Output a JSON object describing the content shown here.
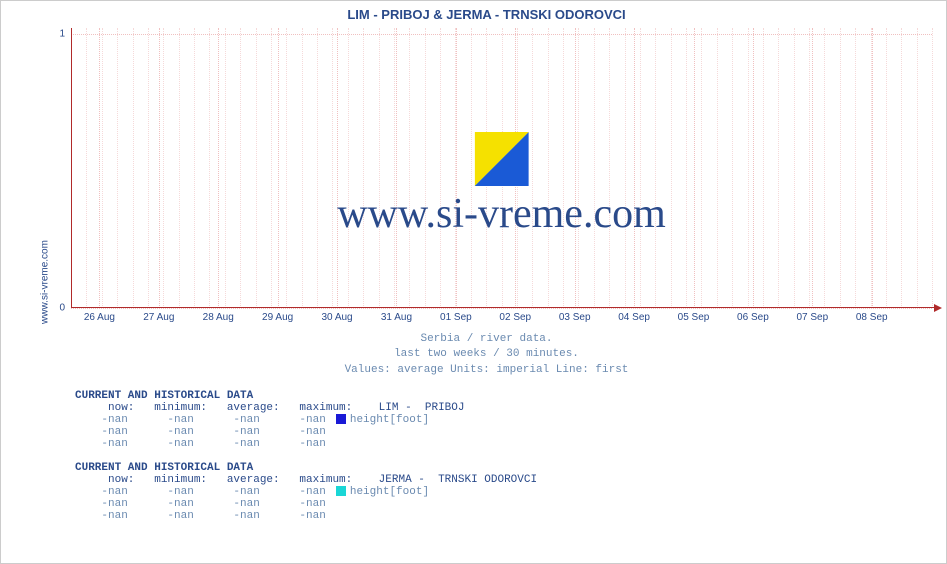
{
  "outer_ylabel": "www.si-vreme.com",
  "chart": {
    "type": "line",
    "title": " LIM -  PRIBOJ &  JERMA -  TRNSKI ODOROVCI",
    "watermark_text": "www.si-vreme.com",
    "background_color": "#ffffff",
    "grid_color": "#f0c0c0",
    "axis_color": "#b02a2a",
    "text_color": "#2a4a8a",
    "yticks": [
      {
        "pos": 1.0,
        "label": "0"
      },
      {
        "pos": 0.02,
        "label": "1"
      }
    ],
    "xticks": [
      {
        "pos": 0.033,
        "label": "26 Aug"
      },
      {
        "pos": 0.102,
        "label": "27 Aug"
      },
      {
        "pos": 0.171,
        "label": "28 Aug"
      },
      {
        "pos": 0.24,
        "label": "29 Aug"
      },
      {
        "pos": 0.309,
        "label": "30 Aug"
      },
      {
        "pos": 0.378,
        "label": "31 Aug"
      },
      {
        "pos": 0.447,
        "label": "01 Sep"
      },
      {
        "pos": 0.516,
        "label": "02 Sep"
      },
      {
        "pos": 0.585,
        "label": "03 Sep"
      },
      {
        "pos": 0.654,
        "label": "04 Sep"
      },
      {
        "pos": 0.723,
        "label": "05 Sep"
      },
      {
        "pos": 0.792,
        "label": "06 Sep"
      },
      {
        "pos": 0.861,
        "label": "07 Sep"
      },
      {
        "pos": 0.93,
        "label": "08 Sep"
      }
    ],
    "minor_x_count": 56,
    "sub1": "Serbia / river data.",
    "sub2": "last two weeks / 30 minutes.",
    "sub3": "Values: average  Units: imperial  Line: first"
  },
  "logo_colors": {
    "left": "#f5e100",
    "right": "#1a5ad6"
  },
  "blocks": [
    {
      "title": "CURRENT AND HISTORICAL DATA",
      "header_now": "now",
      "header_min": "minimum",
      "header_avg": "average",
      "header_max": "maximum",
      "series_name": "LIM -  PRIBOJ",
      "swatch_color": "#1a1ad6",
      "unit_label": "height[foot]",
      "rows": [
        {
          "now": "-nan",
          "min": "-nan",
          "avg": "-nan",
          "max": "-nan"
        },
        {
          "now": "-nan",
          "min": "-nan",
          "avg": "-nan",
          "max": "-nan"
        },
        {
          "now": "-nan",
          "min": "-nan",
          "avg": "-nan",
          "max": "-nan"
        }
      ]
    },
    {
      "title": "CURRENT AND HISTORICAL DATA",
      "header_now": "now",
      "header_min": "minimum",
      "header_avg": "average",
      "header_max": "maximum",
      "series_name": "JERMA -  TRNSKI ODOROVCI",
      "swatch_color": "#1ad6d6",
      "unit_label": "height[foot]",
      "rows": [
        {
          "now": "-nan",
          "min": "-nan",
          "avg": "-nan",
          "max": "-nan"
        },
        {
          "now": "-nan",
          "min": "-nan",
          "avg": "-nan",
          "max": "-nan"
        },
        {
          "now": "-nan",
          "min": "-nan",
          "avg": "-nan",
          "max": "-nan"
        }
      ]
    }
  ]
}
